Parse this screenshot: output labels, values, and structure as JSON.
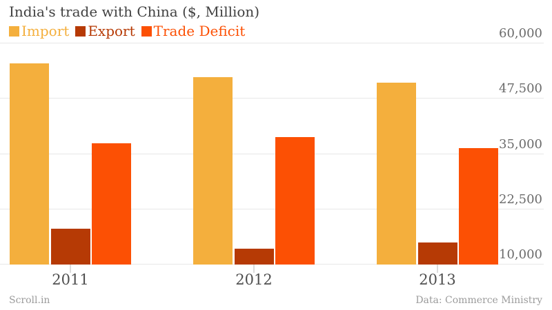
{
  "header": {
    "title": "India's trade with China ($, Million)"
  },
  "footer": {
    "brand": "Scroll.in",
    "source": "Data: Commerce Ministry"
  },
  "chart_data": {
    "type": "bar",
    "title": "India's trade with China ($, Million)",
    "categories": [
      "2011",
      "2012",
      "2013"
    ],
    "series": [
      {
        "name": "Import",
        "color": "#F4AF3D",
        "values": [
          55300,
          52200,
          51000
        ]
      },
      {
        "name": "Export",
        "color": "#B63A05",
        "values": [
          17900,
          13500,
          14800
        ]
      },
      {
        "name": "Trade Deficit",
        "color": "#FC5004",
        "values": [
          37200,
          38700,
          36200
        ]
      }
    ],
    "ylim": [
      10000,
      60000
    ],
    "yticks": [
      10000,
      22500,
      35000,
      47500,
      60000
    ],
    "ytick_labels": [
      "10,000",
      "22,500",
      "35,000",
      "47,500",
      "60,000"
    ],
    "grid": true,
    "legend_position": "top-left",
    "y_axis_side": "right",
    "gridline_color": "#e7e7e7",
    "background_color": "#ffffff"
  }
}
